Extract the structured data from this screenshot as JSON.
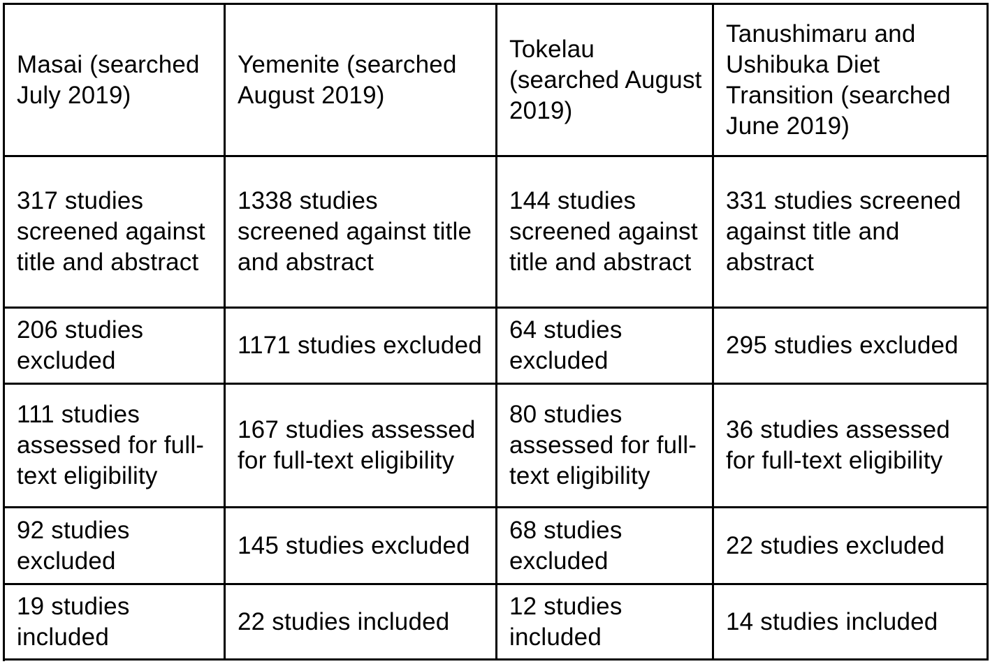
{
  "table": {
    "columns": [
      {
        "header": "Masai (searched July 2019)",
        "screened": "317 studies screened against title and abstract",
        "excluded_initial": "206 studies excluded",
        "assessed": "111 studies assessed for full-text eligibility",
        "excluded_fulltext": "92 studies excluded",
        "included": "19 studies included"
      },
      {
        "header": "Yemenite (searched August 2019)",
        "screened": "1338 studies screened against title and abstract",
        "excluded_initial": "1171 studies excluded",
        "assessed": "167 studies assessed for full-text eligibility",
        "excluded_fulltext": "145 studies excluded",
        "included": "22 studies included"
      },
      {
        "header": "Tokelau (searched August 2019)",
        "screened": "144 studies screened against title and abstract",
        "excluded_initial": "64 studies excluded",
        "assessed": "80 studies assessed for full-text eligibility",
        "excluded_fulltext": "68 studies excluded",
        "included": "12 studies included"
      },
      {
        "header": "Tanushimaru and Ushibuka Diet Transition (searched June 2019)",
        "screened": "331 studies screened against title and abstract",
        "excluded_initial": "295 studies excluded",
        "assessed": "36 studies assessed for full-text eligibility",
        "excluded_fulltext": "22 studies excluded",
        "included": "14 studies included"
      }
    ]
  }
}
